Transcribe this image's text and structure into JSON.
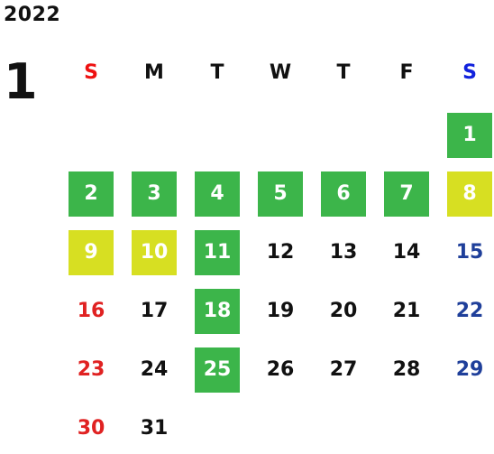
{
  "calendar": {
    "year": "2022",
    "month": "1",
    "weekdays": [
      "S",
      "M",
      "T",
      "W",
      "T",
      "F",
      "S"
    ],
    "colors": {
      "sunday_text": "#e02222",
      "saturday_text": "#1f3f9a",
      "highlight_green": "#3cb54a",
      "highlight_yellow": "#d7df22"
    },
    "days": [
      {
        "day": "1",
        "highlight": "green"
      },
      {
        "day": "2",
        "highlight": "green"
      },
      {
        "day": "3",
        "highlight": "green"
      },
      {
        "day": "4",
        "highlight": "green"
      },
      {
        "day": "5",
        "highlight": "green"
      },
      {
        "day": "6",
        "highlight": "green"
      },
      {
        "day": "7",
        "highlight": "green"
      },
      {
        "day": "8",
        "highlight": "yellow"
      },
      {
        "day": "9",
        "highlight": "yellow"
      },
      {
        "day": "10",
        "highlight": "yellow"
      },
      {
        "day": "11",
        "highlight": "green"
      },
      {
        "day": "12",
        "highlight": "none"
      },
      {
        "day": "13",
        "highlight": "none"
      },
      {
        "day": "14",
        "highlight": "none"
      },
      {
        "day": "15",
        "highlight": "none"
      },
      {
        "day": "16",
        "highlight": "none"
      },
      {
        "day": "17",
        "highlight": "none"
      },
      {
        "day": "18",
        "highlight": "green"
      },
      {
        "day": "19",
        "highlight": "none"
      },
      {
        "day": "20",
        "highlight": "none"
      },
      {
        "day": "21",
        "highlight": "none"
      },
      {
        "day": "22",
        "highlight": "none"
      },
      {
        "day": "23",
        "highlight": "none"
      },
      {
        "day": "24",
        "highlight": "none"
      },
      {
        "day": "25",
        "highlight": "green"
      },
      {
        "day": "26",
        "highlight": "none"
      },
      {
        "day": "27",
        "highlight": "none"
      },
      {
        "day": "28",
        "highlight": "none"
      },
      {
        "day": "29",
        "highlight": "none"
      },
      {
        "day": "30",
        "highlight": "none"
      },
      {
        "day": "31",
        "highlight": "none"
      }
    ]
  }
}
